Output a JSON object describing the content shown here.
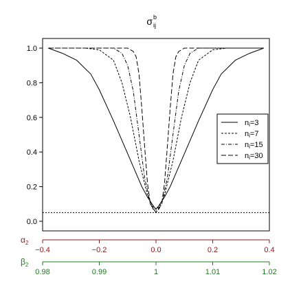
{
  "chart_data": {
    "type": "line",
    "title": "σ",
    "title_sup": "b",
    "title_sub": "ij",
    "x": [
      -0.4,
      -0.35,
      -0.3,
      -0.25,
      -0.2,
      -0.15,
      -0.1,
      -0.05,
      -0.03,
      -0.01,
      0.0,
      0.01,
      0.03,
      0.05,
      0.1,
      0.15,
      0.2,
      0.25,
      0.3,
      0.35,
      0.38
    ],
    "series": [
      {
        "name": "n",
        "name_sub": "i",
        "name_suffix": "=3",
        "dash": "",
        "x": [
          -0.38,
          -0.33,
          -0.28,
          -0.23,
          -0.2,
          -0.15,
          -0.1,
          -0.05,
          -0.03,
          -0.01,
          0.0,
          0.01,
          0.03,
          0.05,
          0.1,
          0.15,
          0.2,
          0.23,
          0.28,
          0.33,
          0.38
        ],
        "values": [
          1.0,
          0.97,
          0.93,
          0.85,
          0.76,
          0.58,
          0.39,
          0.2,
          0.14,
          0.09,
          0.07,
          0.09,
          0.14,
          0.2,
          0.39,
          0.58,
          0.76,
          0.85,
          0.93,
          0.97,
          1.0
        ]
      },
      {
        "name": "n",
        "name_sub": "i",
        "name_suffix": "=7",
        "dash": "3,2",
        "x": [
          -0.38,
          -0.3,
          -0.25,
          -0.2,
          -0.15,
          -0.12,
          -0.09,
          -0.06,
          -0.03,
          -0.01,
          0.0,
          0.01,
          0.03,
          0.06,
          0.09,
          0.12,
          0.15,
          0.2,
          0.25,
          0.3,
          0.38
        ],
        "values": [
          1.0,
          1.0,
          1.0,
          0.99,
          0.93,
          0.8,
          0.6,
          0.35,
          0.15,
          0.08,
          0.07,
          0.08,
          0.15,
          0.35,
          0.6,
          0.8,
          0.93,
          0.99,
          1.0,
          1.0,
          1.0
        ]
      },
      {
        "name": "n",
        "name_sub": "i",
        "name_suffix": "=15",
        "dash": "5,2,1,2",
        "x": [
          -0.38,
          -0.2,
          -0.15,
          -0.12,
          -0.1,
          -0.08,
          -0.06,
          -0.04,
          -0.02,
          -0.01,
          0.0,
          0.01,
          0.02,
          0.04,
          0.06,
          0.08,
          0.1,
          0.12,
          0.15,
          0.2,
          0.38
        ],
        "values": [
          1.0,
          1.0,
          1.0,
          0.97,
          0.9,
          0.75,
          0.5,
          0.25,
          0.1,
          0.07,
          0.06,
          0.07,
          0.1,
          0.25,
          0.5,
          0.75,
          0.9,
          0.97,
          1.0,
          1.0,
          1.0
        ]
      },
      {
        "name": "n",
        "name_sub": "i",
        "name_suffix": "=30",
        "dash": "7,3",
        "x": [
          -0.38,
          -0.12,
          -0.1,
          -0.08,
          -0.07,
          -0.06,
          -0.05,
          -0.04,
          -0.03,
          -0.02,
          0.0,
          0.02,
          0.03,
          0.04,
          0.05,
          0.06,
          0.07,
          0.08,
          0.1,
          0.12,
          0.38
        ],
        "values": [
          1.0,
          1.0,
          1.0,
          0.98,
          0.95,
          0.85,
          0.65,
          0.43,
          0.22,
          0.1,
          0.05,
          0.1,
          0.22,
          0.43,
          0.65,
          0.85,
          0.95,
          0.98,
          1.0,
          1.0,
          1.0
        ]
      }
    ],
    "reference_line": {
      "y": 0.05,
      "dash": "2,2"
    },
    "xlim": [
      -0.4,
      0.4
    ],
    "ylim": [
      0.0,
      1.0
    ],
    "yticks": [
      "0.0",
      "0.2",
      "0.4",
      "0.6",
      "0.8",
      "1.0"
    ],
    "ytick_values": [
      0.0,
      0.2,
      0.4,
      0.6,
      0.8,
      1.0
    ],
    "axes": [
      {
        "label": "α",
        "label_sub": "2",
        "color": "#8b1a1a",
        "tick_values": [
          -0.4,
          -0.2,
          0.0,
          0.2,
          0.4
        ],
        "tick_labels": [
          "−0.4",
          "−0.2",
          "0.0",
          "0.2",
          "0.4"
        ]
      },
      {
        "label": "β",
        "label_sub": "2",
        "color": "#1e7a1e",
        "tick_values": [
          -0.4,
          -0.2,
          0.0,
          0.2,
          0.4
        ],
        "tick_labels": [
          "0.98",
          "0.99",
          "1",
          "1.01",
          "1.02"
        ]
      }
    ],
    "legend_position": "right",
    "grid": false
  }
}
